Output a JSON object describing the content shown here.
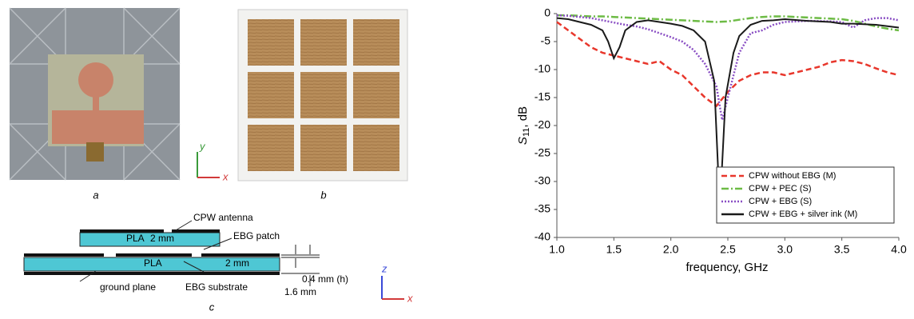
{
  "panels": {
    "a": "a",
    "b": "b",
    "c": "c"
  },
  "photo_axes": {
    "y": "y",
    "x": "x"
  },
  "diagram": {
    "labels": {
      "cpw_antenna": "CPW antenna",
      "pla_top": "PLA",
      "thick_top": "2 mm",
      "ebg_patch": "EBG patch",
      "pla_bottom": "PLA",
      "thick_bottom": "2 mm",
      "ground_plane": "ground plane",
      "ebg_substrate": "EBG substrate",
      "gap": "0.4 mm (h)",
      "ground_thick": "1.6 mm"
    },
    "axes": {
      "z": "z",
      "x": "x"
    }
  },
  "chart_data": {
    "type": "line",
    "ylabel": {
      "main": "S",
      "sub": "11",
      "rest": ", dB"
    },
    "xlabel": "frequency, GHz",
    "xlim": [
      1,
      4
    ],
    "ylim": [
      -40,
      0
    ],
    "xticks": [
      {
        "value": 1,
        "label": "1.0"
      },
      {
        "value": 1.5,
        "label": "1.5"
      },
      {
        "value": 2,
        "label": "2.0"
      },
      {
        "value": 2.5,
        "label": "2.5"
      },
      {
        "value": 3,
        "label": "3.0"
      },
      {
        "value": 3.5,
        "label": "3.5"
      },
      {
        "value": 4,
        "label": "4.0"
      }
    ],
    "yticks": [
      -40,
      -35,
      -30,
      -25,
      -20,
      -15,
      -10,
      -5,
      0
    ],
    "legend": "lower right",
    "series": [
      {
        "name": "CPW without EBG (M)",
        "color": "#e8372c",
        "dash": "dashed",
        "x": [
          1.0,
          1.1,
          1.2,
          1.3,
          1.4,
          1.5,
          1.6,
          1.7,
          1.8,
          1.9,
          2.0,
          2.1,
          2.2,
          2.3,
          2.4,
          2.5,
          2.6,
          2.7,
          2.8,
          2.9,
          3.0,
          3.1,
          3.2,
          3.3,
          3.4,
          3.5,
          3.6,
          3.7,
          3.8,
          3.9,
          4.0
        ],
        "values": [
          -1.5,
          -3,
          -4.5,
          -6,
          -7,
          -7.5,
          -8,
          -8.5,
          -9,
          -8.5,
          -10,
          -11,
          -13,
          -15,
          -16.5,
          -14,
          -12,
          -11,
          -10.5,
          -10.5,
          -11,
          -10.5,
          -10,
          -9.5,
          -8.7,
          -8.3,
          -8.5,
          -9,
          -9.8,
          -10.5,
          -11
        ]
      },
      {
        "name": "CPW + PEC (S)",
        "color": "#6dbb45",
        "dash": "dashdot",
        "x": [
          1.0,
          1.1,
          1.2,
          1.3,
          1.4,
          1.5,
          1.6,
          1.7,
          1.8,
          1.9,
          2.0,
          2.1,
          2.2,
          2.3,
          2.4,
          2.5,
          2.6,
          2.7,
          2.8,
          2.9,
          3.0,
          3.1,
          3.2,
          3.3,
          3.4,
          3.5,
          3.6,
          3.7,
          3.8,
          3.9,
          4.0
        ],
        "values": [
          -0.3,
          -0.3,
          -0.4,
          -0.5,
          -0.5,
          -0.6,
          -0.7,
          -0.8,
          -0.9,
          -1.0,
          -1.1,
          -1.2,
          -1.3,
          -1.4,
          -1.5,
          -1.4,
          -1.1,
          -0.8,
          -0.6,
          -0.5,
          -0.5,
          -0.6,
          -0.7,
          -0.8,
          -0.9,
          -1.0,
          -1.3,
          -1.8,
          -2.3,
          -2.7,
          -3.0
        ]
      },
      {
        "name": "CPW + EBG (S)",
        "color": "#8a4fc4",
        "dash": "dotted",
        "x": [
          1.0,
          1.1,
          1.2,
          1.3,
          1.4,
          1.5,
          1.6,
          1.7,
          1.8,
          1.9,
          2.0,
          2.1,
          2.2,
          2.3,
          2.4,
          2.45,
          2.5,
          2.6,
          2.7,
          2.8,
          2.9,
          3.0,
          3.2,
          3.4,
          3.5,
          3.6,
          3.7,
          3.8,
          3.9,
          4.0
        ],
        "values": [
          -0.3,
          -0.4,
          -0.6,
          -0.8,
          -1.2,
          -1.6,
          -2,
          -2.3,
          -2.8,
          -3.5,
          -4.2,
          -5,
          -6.5,
          -9,
          -13,
          -19,
          -15,
          -7,
          -3.5,
          -3,
          -2,
          -1.5,
          -1.3,
          -1.4,
          -1.5,
          -2.5,
          -1.2,
          -0.8,
          -0.8,
          -1.2
        ]
      },
      {
        "name": "CPW + EBG + silver ink (M)",
        "color": "#1a1a1a",
        "dash": "solid",
        "x": [
          1.0,
          1.1,
          1.2,
          1.3,
          1.4,
          1.45,
          1.5,
          1.55,
          1.6,
          1.7,
          1.8,
          1.9,
          2.0,
          2.1,
          2.2,
          2.3,
          2.38,
          2.43,
          2.48,
          2.55,
          2.6,
          2.7,
          2.8,
          2.9,
          3.0,
          3.2,
          3.4,
          3.5,
          3.6,
          3.8,
          4.0
        ],
        "values": [
          -0.8,
          -1,
          -1.5,
          -2,
          -3,
          -5,
          -8,
          -6,
          -3,
          -1.5,
          -1.2,
          -1.5,
          -1.8,
          -2.2,
          -3,
          -5,
          -12,
          -35,
          -15,
          -7,
          -4,
          -2,
          -1.3,
          -1.2,
          -1.0,
          -1.3,
          -1.5,
          -1.8,
          -1.8,
          -2,
          -2.5
        ]
      }
    ]
  }
}
